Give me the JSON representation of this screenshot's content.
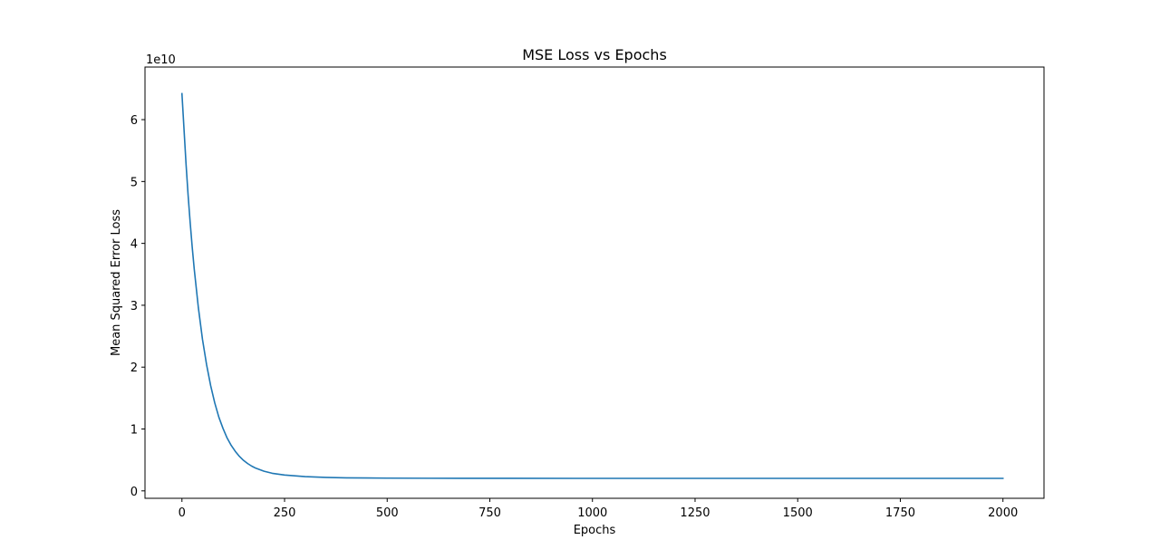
{
  "chart_data": {
    "type": "line",
    "title": "MSE Loss vs Epochs",
    "xlabel": "Epochs",
    "ylabel": "Mean Squared Error Loss",
    "y_offset_label": "1e10",
    "xlim": [
      -90,
      2100
    ],
    "ylim": [
      -0.12,
      6.85
    ],
    "x_ticks": [
      0,
      250,
      500,
      750,
      1000,
      1250,
      1500,
      1750,
      2000
    ],
    "x_tick_labels": [
      "0",
      "250",
      "500",
      "750",
      "1000",
      "1250",
      "1500",
      "1750",
      "2000"
    ],
    "y_ticks": [
      0,
      1,
      2,
      3,
      4,
      5,
      6
    ],
    "y_tick_labels": [
      "0",
      "1",
      "2",
      "3",
      "4",
      "5",
      "6"
    ],
    "grid": false,
    "series": [
      {
        "color": "#1f77b4",
        "x": [
          0,
          5,
          10,
          15,
          20,
          25,
          30,
          40,
          50,
          60,
          70,
          80,
          90,
          100,
          110,
          120,
          130,
          140,
          150,
          160,
          170,
          180,
          200,
          220,
          250,
          300,
          350,
          400,
          450,
          500,
          600,
          700,
          800,
          1000,
          1200,
          1500,
          1750,
          2000
        ],
        "y": [
          6.42,
          5.85,
          5.28,
          4.78,
          4.34,
          3.94,
          3.58,
          2.96,
          2.45,
          2.04,
          1.7,
          1.42,
          1.19,
          1.01,
          0.855,
          0.735,
          0.638,
          0.558,
          0.493,
          0.442,
          0.4,
          0.366,
          0.317,
          0.284,
          0.256,
          0.23,
          0.218,
          0.211,
          0.208,
          0.206,
          0.204,
          0.203,
          0.203,
          0.202,
          0.202,
          0.202,
          0.202,
          0.202
        ]
      }
    ]
  }
}
